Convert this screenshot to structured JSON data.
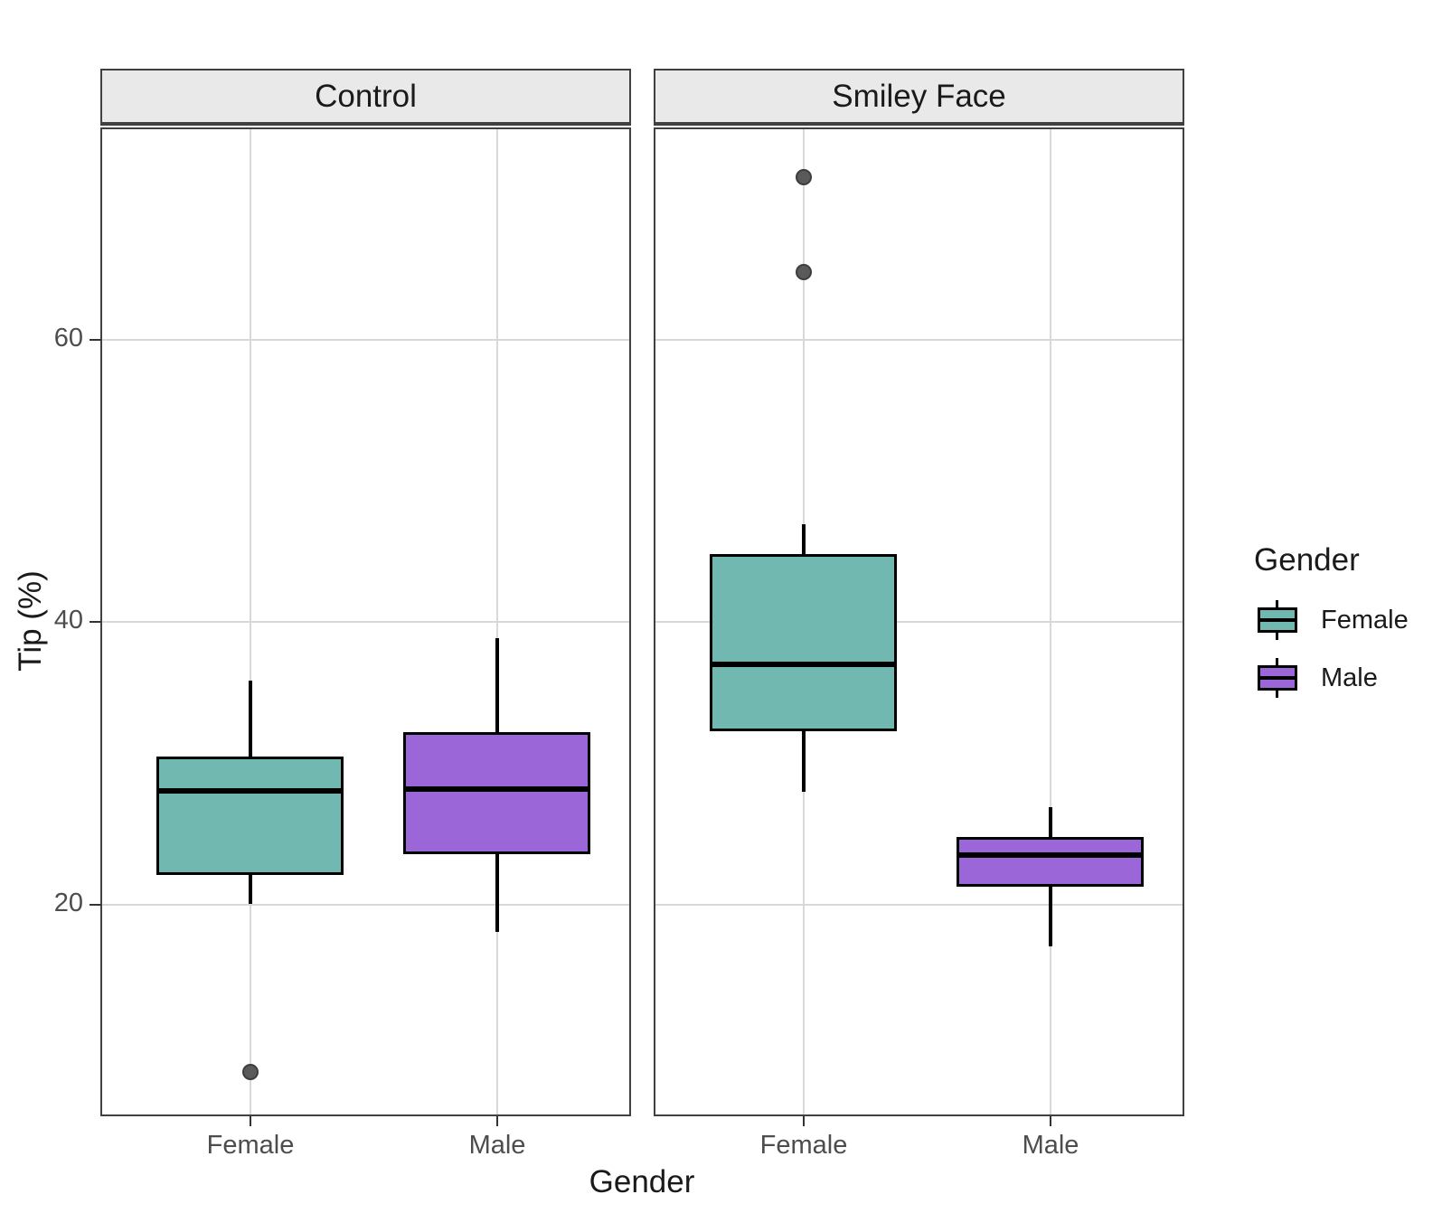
{
  "legend": {
    "title": "Gender",
    "entries": [
      {
        "label": "Female",
        "color": "#70B8B0"
      },
      {
        "label": "Male",
        "color": "#9A66D8"
      }
    ]
  },
  "colors": {
    "female_fill": "#70B8B0",
    "male_fill": "#9A66D8",
    "outlier": "#5a5a5a",
    "gridline": "#d8d8d8",
    "panel_border": "#404040",
    "strip_fill": "#e9e9e9",
    "axis_text": "#4d4d4d",
    "title_text": "#1a1a1a"
  },
  "chart_data": {
    "type": "boxplot",
    "title": "",
    "xlabel": "Gender",
    "ylabel": "Tip (%)",
    "ylim": [
      5.05,
      75
    ],
    "y_ticks": [
      20,
      40,
      60
    ],
    "x_categories": [
      "Female",
      "Male"
    ],
    "grid": true,
    "legend_position": "right",
    "facets": [
      {
        "label": "Control",
        "groups": [
          {
            "gender": "Female",
            "color": "#70B8B0",
            "whisker_low": 20.1,
            "q1": 22.1,
            "median": 28.1,
            "q3": 30.5,
            "whisker_high": 35.9,
            "outliers": [
              8.2
            ]
          },
          {
            "gender": "Male",
            "color": "#9A66D8",
            "whisker_low": 18.1,
            "q1": 23.6,
            "median": 28.2,
            "q3": 32.2,
            "whisker_high": 38.9,
            "outliers": []
          }
        ]
      },
      {
        "label": "Smiley Face",
        "groups": [
          {
            "gender": "Female",
            "color": "#70B8B0",
            "whisker_low": 28.0,
            "q1": 32.3,
            "median": 37.0,
            "q3": 44.8,
            "whisker_high": 46.9,
            "outliers": [
              64.8,
              71.5
            ]
          },
          {
            "gender": "Male",
            "color": "#9A66D8",
            "whisker_low": 17.1,
            "q1": 21.3,
            "median": 23.5,
            "q3": 24.8,
            "whisker_high": 26.9,
            "outliers": []
          }
        ]
      }
    ]
  }
}
